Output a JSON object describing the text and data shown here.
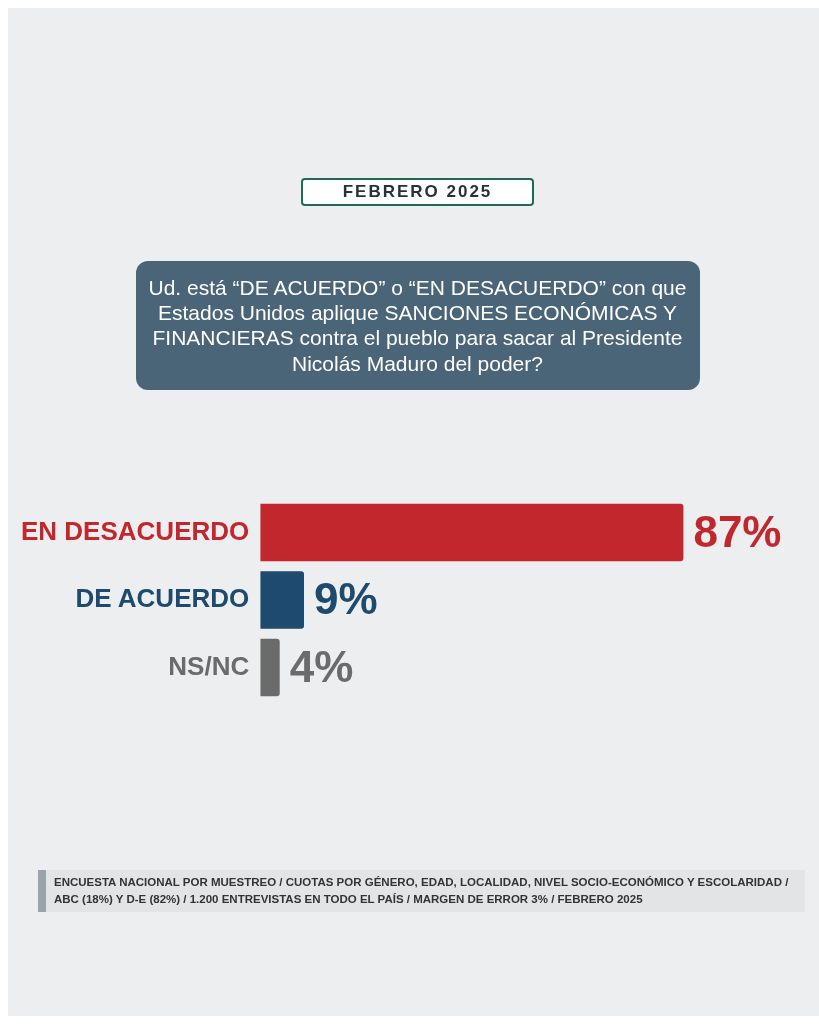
{
  "chart_data": {
    "type": "bar",
    "orientation": "horizontal",
    "subtitle": "FEBRERO 2025",
    "title": "Ud. está “DE ACUERDO” o “EN DESACUERDO” con que Estados Unidos aplique SANCIONES ECONÓMICAS Y FINANCIERAS contra el pueblo para sacar al Presidente Nicolás Maduro del poder?",
    "categories": [
      "EN DESACUERDO",
      "DE ACUERDO",
      "NS/NC"
    ],
    "values": [
      87,
      9,
      4
    ],
    "colors": [
      "#c1272d",
      "#1d4a6e",
      "#6b6b6b"
    ],
    "value_labels": [
      "87%",
      "9%",
      "4%"
    ],
    "legend": false,
    "annotations": [
      "ENCUESTA NACIONAL POR MUESTREO / CUOTAS POR GÉNERO, EDAD, LOCALIDAD, NIVEL SOCIO-ECONÓMICO Y ESCOLARIDAD / ABC (18%) Y D-E (82%) / 1.200 ENTREVISTAS EN TODO EL PAÍS / MARGEN DE ERROR 3% / FEBRERO 2025"
    ]
  }
}
